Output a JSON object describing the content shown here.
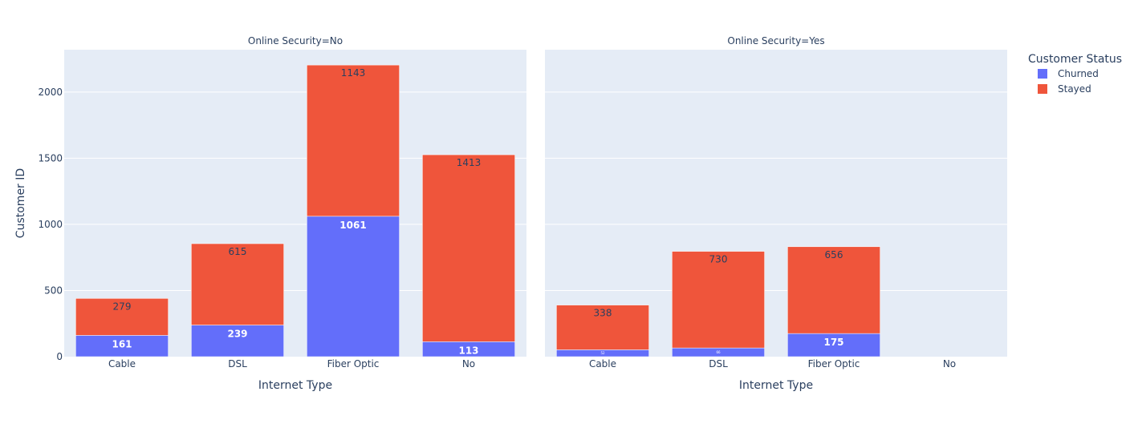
{
  "chart_data": {
    "type": "bar",
    "barmode": "stack",
    "ylabel": "Customer ID",
    "xlabel": "Internet Type",
    "ylim": [
      0,
      2320
    ],
    "yticks": [
      0,
      500,
      1000,
      1500,
      2000
    ],
    "categories": [
      "Cable",
      "DSL",
      "Fiber Optic",
      "No"
    ],
    "legend": {
      "title": "Customer Status",
      "position": "right",
      "items": [
        {
          "name": "Churned",
          "color": "#636efa"
        },
        {
          "name": "Stayed",
          "color": "#ef553b"
        }
      ]
    },
    "colors": {
      "plot_bg": "#e5ecf6",
      "grid": "#ffffff",
      "text": "#2a3f5f"
    },
    "panels": [
      {
        "title": "Online Security=No",
        "series": [
          {
            "name": "Churned",
            "values": [
              161,
              239,
              1061,
              113
            ],
            "labels": [
              "161",
              "239",
              "1061",
              "113"
            ]
          },
          {
            "name": "Stayed",
            "values": [
              279,
              615,
              1143,
              1413
            ],
            "labels": [
              "279",
              "615",
              "1143",
              "1413"
            ]
          }
        ]
      },
      {
        "title": "Online Security=Yes",
        "series": [
          {
            "name": "Churned",
            "values": [
              52,
              66,
              175,
              null
            ],
            "labels": [
              "52",
              "66",
              "175",
              ""
            ]
          },
          {
            "name": "Stayed",
            "values": [
              338,
              730,
              656,
              null
            ],
            "labels": [
              "338",
              "730",
              "656",
              ""
            ]
          }
        ]
      }
    ]
  }
}
